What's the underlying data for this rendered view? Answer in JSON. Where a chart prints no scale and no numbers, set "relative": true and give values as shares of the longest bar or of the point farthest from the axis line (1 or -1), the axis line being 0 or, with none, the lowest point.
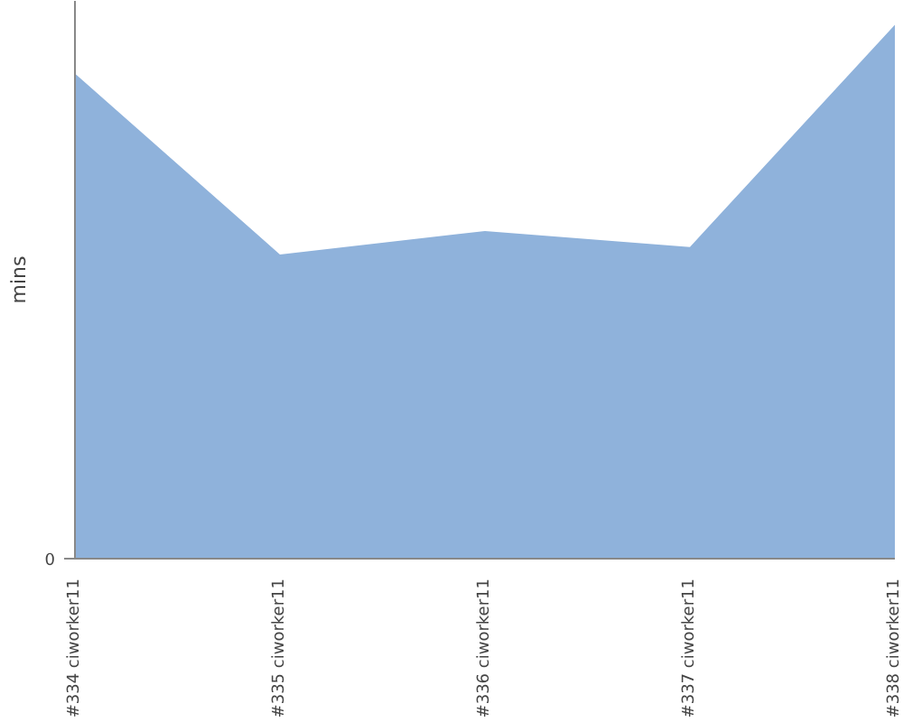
{
  "chart_data": {
    "type": "area",
    "ylabel": "mins",
    "relative": true,
    "grid": false,
    "annotations": [
      "0"
    ],
    "categories": [
      "#334 ciworker11",
      "#335 ciworker11",
      "#336 ciworker11",
      "#337 ciworker11",
      "#338 ciworker11"
    ],
    "series": [
      {
        "color": "#8fb2db",
        "values": [
          0.909,
          0.57,
          0.614,
          0.584,
          1.0
        ]
      }
    ]
  }
}
